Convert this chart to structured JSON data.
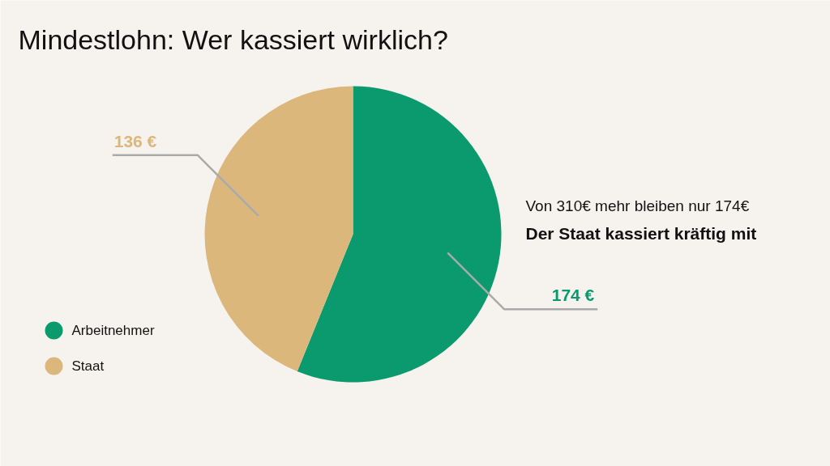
{
  "chart_data": {
    "type": "pie",
    "title": "Mindestlohn: Wer kassiert wirklich?",
    "categories": [
      "Arbeitnehmer",
      "Staat"
    ],
    "values": [
      174,
      136
    ],
    "colors": [
      "#0a9a6e",
      "#dbb77c"
    ],
    "value_labels": [
      "174 €",
      "136 €"
    ],
    "legend": "bottom left",
    "annotations": [
      "Von 310€ mehr bleiben nur 174€",
      "Der Staat kassiert kräftig mit"
    ]
  }
}
